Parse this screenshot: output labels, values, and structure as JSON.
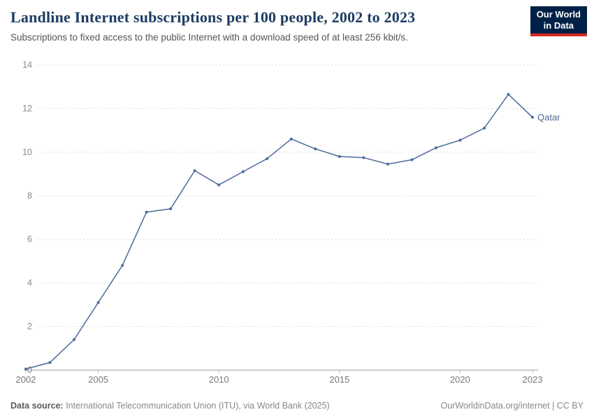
{
  "header": {
    "title": "Landline Internet subscriptions per 100 people, 2002 to 2023",
    "subtitle": "Subscriptions to fixed access to the public Internet with a download speed of at least 256 kbit/s.",
    "logo": {
      "line1": "Our World",
      "line2": "in Data"
    }
  },
  "chart_data": {
    "type": "line",
    "title": "Landline Internet subscriptions per 100 people, 2002 to 2023",
    "x": [
      2002,
      2003,
      2004,
      2005,
      2006,
      2007,
      2008,
      2009,
      2010,
      2011,
      2012,
      2013,
      2014,
      2015,
      2016,
      2017,
      2018,
      2019,
      2020,
      2021,
      2022,
      2023
    ],
    "series": [
      {
        "name": "Qatar",
        "values": [
          0.05,
          0.35,
          1.4,
          3.1,
          4.8,
          7.25,
          7.4,
          9.15,
          8.5,
          9.1,
          9.7,
          10.6,
          10.15,
          9.8,
          9.75,
          9.45,
          9.65,
          10.2,
          10.55,
          11.1,
          12.65,
          11.6
        ]
      }
    ],
    "xlabel": "",
    "ylabel": "",
    "ylim": [
      0,
      14
    ],
    "yticks": [
      0,
      2,
      4,
      6,
      8,
      10,
      12,
      14
    ],
    "xticks": [
      2002,
      2005,
      2010,
      2015,
      2020,
      2023
    ],
    "grid": true,
    "legend_position": "end-of-line",
    "line_color": "#4c6a9c",
    "label_color": "#4c6a9c",
    "grid_color": "#dcdcdc",
    "axis_color": "#999999",
    "tick_text_color": "#8a8a8a"
  },
  "footer": {
    "source_label": "Data source:",
    "source_text": " International Telecommunication Union (ITU), via World Bank (2025)",
    "right_text": "OurWorldinData.org/internet | CC BY"
  }
}
